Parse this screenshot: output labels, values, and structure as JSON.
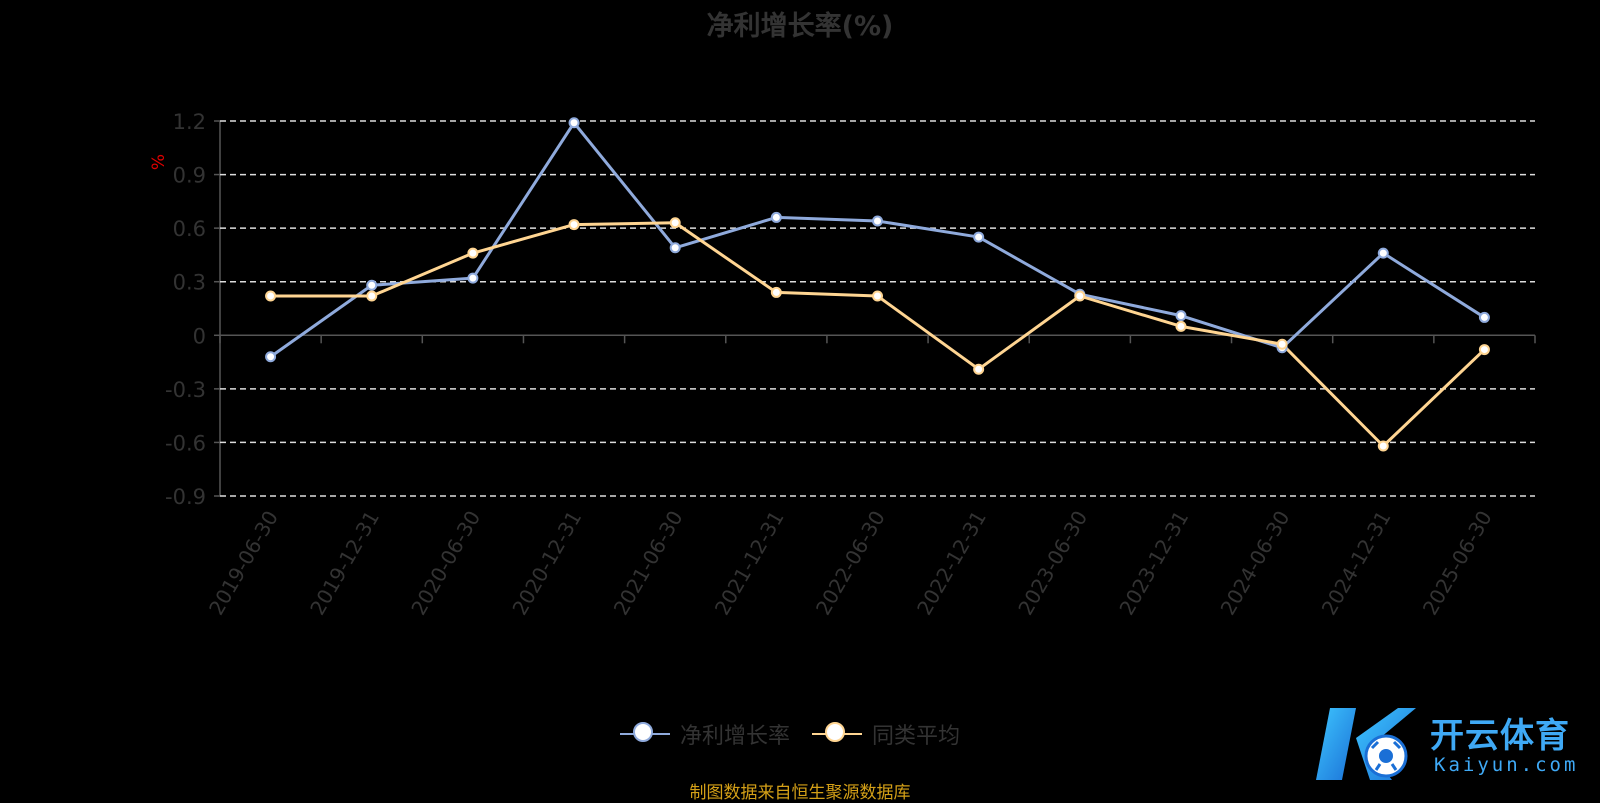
{
  "title": "净利增长率(%)",
  "source": "制图数据来自恒生聚源数据库",
  "watermark": {
    "brand": "开云体育",
    "domain": "Kaiyun.com"
  },
  "chart_data": {
    "type": "line",
    "title": "净利增长率(%)",
    "ylabel": "%",
    "xlabel": "",
    "ylim": [
      -0.9,
      1.2
    ],
    "yticks": [
      1.2,
      0.9,
      0.6,
      0.3,
      0,
      -0.3,
      -0.6,
      -0.9
    ],
    "grid": true,
    "legend_position": "bottom",
    "categories": [
      "2019-06-30",
      "2019-12-31",
      "2020-06-30",
      "2020-12-31",
      "2021-06-30",
      "2021-12-31",
      "2022-06-30",
      "2022-12-31",
      "2023-06-30",
      "2023-12-31",
      "2024-06-30",
      "2024-12-31",
      "2025-06-30"
    ],
    "series": [
      {
        "name": "净利增长率",
        "color": "#8faadc",
        "values": [
          -0.12,
          0.28,
          0.32,
          1.19,
          0.49,
          0.66,
          0.64,
          0.55,
          0.23,
          0.11,
          -0.07,
          0.46,
          0.1
        ]
      },
      {
        "name": "同类平均",
        "color": "#ffd592",
        "values": [
          0.22,
          0.22,
          0.46,
          0.62,
          0.63,
          0.24,
          0.22,
          -0.19,
          0.22,
          0.05,
          -0.05,
          -0.62,
          -0.08
        ]
      }
    ]
  }
}
